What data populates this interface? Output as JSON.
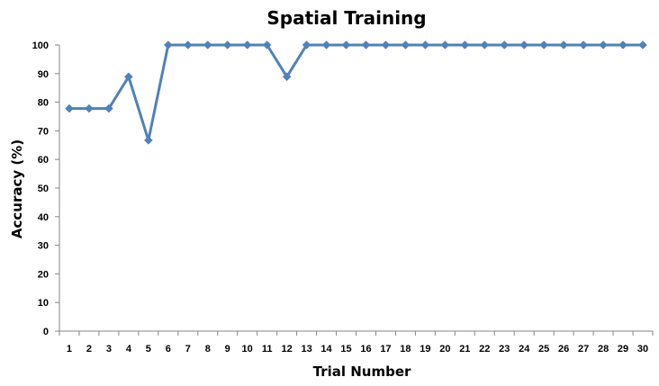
{
  "chart_data": {
    "type": "line",
    "title": "Spatial Training",
    "xlabel": "Trial Number",
    "ylabel": "Accuracy (%)",
    "x": [
      1,
      2,
      3,
      4,
      5,
      6,
      7,
      8,
      9,
      10,
      11,
      12,
      13,
      14,
      15,
      16,
      17,
      18,
      19,
      20,
      21,
      22,
      23,
      24,
      25,
      26,
      27,
      28,
      29,
      30
    ],
    "categories": [
      "1",
      "2",
      "3",
      "4",
      "5",
      "6",
      "7",
      "8",
      "9",
      "10",
      "11",
      "12",
      "13",
      "14",
      "15",
      "16",
      "17",
      "18",
      "19",
      "20",
      "21",
      "22",
      "23",
      "24",
      "25",
      "26",
      "27",
      "28",
      "29",
      "30"
    ],
    "series": [
      {
        "color": "#4F81BD",
        "marker": "diamond",
        "values": [
          77.8,
          77.8,
          77.8,
          88.9,
          66.7,
          100,
          100,
          100,
          100,
          100,
          100,
          88.9,
          100,
          100,
          100,
          100,
          100,
          100,
          100,
          100,
          100,
          100,
          100,
          100,
          100,
          100,
          100,
          100,
          100,
          100
        ]
      }
    ],
    "ylim": [
      0,
      100
    ],
    "yticks": [
      0,
      10,
      20,
      30,
      40,
      50,
      60,
      70,
      80,
      90,
      100
    ],
    "ytick_labels": [
      "0",
      "10",
      "20",
      "30",
      "40",
      "50",
      "60",
      "70",
      "80",
      "90",
      "100"
    ],
    "grid": false,
    "legend": "none"
  }
}
